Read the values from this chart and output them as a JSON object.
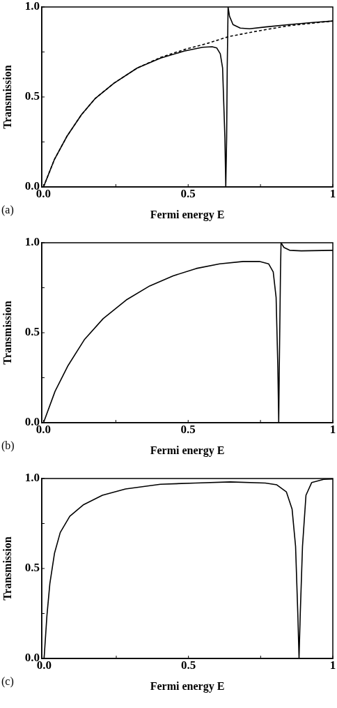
{
  "chart_data": [
    {
      "type": "line",
      "xlabel": "Fermi energy E",
      "ylabel": "Transmission",
      "annotations": [
        "(a)"
      ],
      "grid": false,
      "legend": false,
      "marker": "none",
      "xlim": [
        -0.006,
        1
      ],
      "ylim": [
        0,
        1
      ],
      "xticks": [
        {
          "value": 0,
          "label": "0.0"
        },
        {
          "value": 0.25,
          "label": null
        },
        {
          "value": 0.5,
          "label": "0.5"
        },
        {
          "value": 0.75,
          "label": null
        },
        {
          "value": 1,
          "label": "1"
        }
      ],
      "yticks": [
        {
          "value": 0,
          "label": "0.0"
        },
        {
          "value": 0.25,
          "label": null
        },
        {
          "value": 0.5,
          "label": "0.5"
        },
        {
          "value": 0.75,
          "label": null
        },
        {
          "value": 1,
          "label": "1.0"
        }
      ],
      "series": [
        {
          "color": "#000000",
          "line_style": "solid",
          "x": [
            0,
            0.038,
            0.082,
            0.131,
            0.179,
            0.244,
            0.324,
            0.405,
            0.486,
            0.55,
            0.583,
            0.599,
            0.611,
            0.619,
            0.627,
            0.63,
            0.633,
            0.635,
            0.638,
            0.643,
            0.655,
            0.68,
            0.712,
            0.768,
            0.849,
            0.93,
            1
          ],
          "values": [
            0,
            0.154,
            0.284,
            0.401,
            0.492,
            0.577,
            0.661,
            0.716,
            0.755,
            0.776,
            0.779,
            0.772,
            0.74,
            0.661,
            0.271,
            0,
            0.271,
            0.66,
            1.0,
            0.948,
            0.902,
            0.883,
            0.879,
            0.889,
            0.902,
            0.914,
            0.922
          ]
        },
        {
          "color": "#000000",
          "line_style": "dashed",
          "x": [
            0,
            0.038,
            0.082,
            0.131,
            0.179,
            0.244,
            0.324,
            0.405,
            0.486,
            0.567,
            0.639,
            0.728,
            0.849,
            1
          ],
          "values": [
            0,
            0.154,
            0.284,
            0.401,
            0.492,
            0.577,
            0.661,
            0.72,
            0.763,
            0.798,
            0.835,
            0.863,
            0.896,
            0.922
          ]
        }
      ]
    },
    {
      "type": "line",
      "xlabel": "Fermi energy E",
      "ylabel": "Transmission",
      "annotations": [
        "(b)"
      ],
      "grid": false,
      "legend": false,
      "marker": "none",
      "xlim": [
        -0.006,
        1
      ],
      "ylim": [
        0,
        1
      ],
      "xticks": [
        {
          "value": 0,
          "label": "0.0"
        },
        {
          "value": 0.25,
          "label": null
        },
        {
          "value": 0.5,
          "label": "0.5"
        },
        {
          "value": 0.75,
          "label": null
        },
        {
          "value": 1,
          "label": "1"
        }
      ],
      "yticks": [
        {
          "value": 0,
          "label": "0.0"
        },
        {
          "value": 0.25,
          "label": null
        },
        {
          "value": 0.5,
          "label": "0.5"
        },
        {
          "value": 0.75,
          "label": null
        },
        {
          "value": 1,
          "label": "1.0"
        }
      ],
      "series": [
        {
          "color": "#000000",
          "line_style": "solid",
          "x": [
            0,
            0.04,
            0.085,
            0.141,
            0.206,
            0.286,
            0.367,
            0.448,
            0.528,
            0.609,
            0.69,
            0.746,
            0.778,
            0.794,
            0.804,
            0.81,
            0.813,
            0.815,
            0.819,
            0.821,
            0.831,
            0.851,
            0.891,
            1
          ],
          "values": [
            0,
            0.175,
            0.318,
            0.461,
            0.578,
            0.682,
            0.76,
            0.816,
            0.857,
            0.883,
            0.896,
            0.896,
            0.883,
            0.838,
            0.695,
            0.305,
            0,
            0.305,
            0.825,
            1.0,
            0.974,
            0.958,
            0.955,
            0.958
          ]
        }
      ]
    },
    {
      "type": "line",
      "xlabel": "Fermi energy E",
      "ylabel": "Transmission",
      "annotations": [
        "(c)"
      ],
      "grid": false,
      "legend": false,
      "marker": "none",
      "xlim": [
        -0.008,
        1
      ],
      "ylim": [
        0,
        1
      ],
      "xticks": [
        {
          "value": 0,
          "label": "0.0"
        },
        {
          "value": 0.25,
          "label": null
        },
        {
          "value": 0.5,
          "label": "0.5"
        },
        {
          "value": 0.75,
          "label": null
        },
        {
          "value": 1,
          "label": "1"
        }
      ],
      "yticks": [
        {
          "value": 0,
          "label": "0.0"
        },
        {
          "value": 0.25,
          "label": null
        },
        {
          "value": 0.5,
          "label": "0.5"
        },
        {
          "value": 0.75,
          "label": null
        },
        {
          "value": 1,
          "label": "1.0"
        }
      ],
      "series": [
        {
          "color": "#000000",
          "line_style": "solid",
          "x": [
            0,
            0.0097,
            0.02,
            0.036,
            0.056,
            0.089,
            0.137,
            0.202,
            0.282,
            0.403,
            0.524,
            0.645,
            0.766,
            0.806,
            0.839,
            0.859,
            0.871,
            0.879,
            0.883,
            0.887,
            0.895,
            0.907,
            0.927,
            0.968,
            1
          ],
          "values": [
            0,
            0.235,
            0.416,
            0.584,
            0.7,
            0.79,
            0.855,
            0.907,
            0.942,
            0.968,
            0.975,
            0.981,
            0.975,
            0.965,
            0.926,
            0.829,
            0.623,
            0.235,
            0,
            0.235,
            0.623,
            0.907,
            0.978,
            0.995,
            0.997
          ]
        }
      ]
    }
  ]
}
